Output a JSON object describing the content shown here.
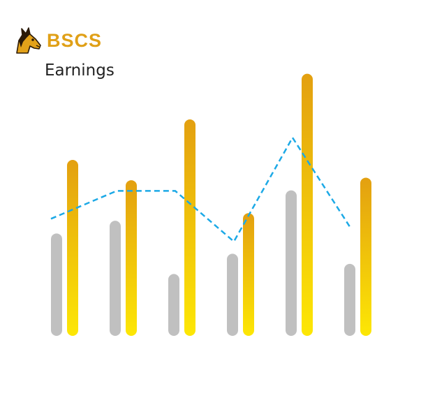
{
  "brand": {
    "name": "BSCS",
    "logo_icon": "horse-head-icon"
  },
  "chart_data": {
    "type": "bar",
    "title": "Earnings",
    "xlabel": "",
    "ylabel": "",
    "categories": [
      "",
      "",
      "",
      "",
      "",
      ""
    ],
    "ylim": [
      0,
      100
    ],
    "grid": false,
    "legend": "none",
    "series": [
      {
        "type": "bar",
        "color": "#c0c0c0",
        "values": [
          36,
          41,
          20,
          28,
          53,
          24
        ]
      },
      {
        "type": "bar",
        "color_top": "#e3a010",
        "color_bottom": "#fde705",
        "values": [
          65,
          57,
          81,
          44,
          99,
          58
        ]
      },
      {
        "type": "line",
        "style": "dashed",
        "color": "#1ca9e6",
        "values": [
          44,
          55,
          55,
          35,
          76,
          40
        ]
      }
    ]
  },
  "colors": {
    "accent": "#e0a017",
    "title": "#222222"
  }
}
